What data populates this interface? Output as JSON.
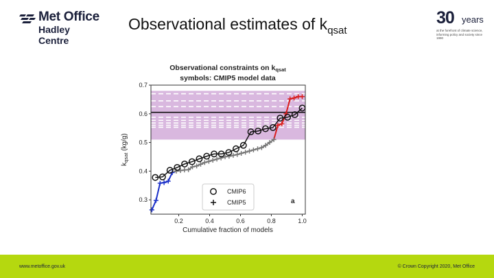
{
  "header": {
    "logo_line1": "Met Office",
    "logo_line2": "Hadley Centre",
    "title_main": "Observational estimates of k",
    "title_sub": "qsat",
    "years_number": "30",
    "years_word": "years",
    "years_tagline": "at the forefront of climate science, informing policy and society since 1990"
  },
  "footer": {
    "left_text": "www.metoffice.gov.uk",
    "right_text": "© Crown Copyright 2020, Met Office",
    "bar_color": "#b5d80f"
  },
  "chart_data": {
    "type": "line",
    "title_line1": "Observational constraints on k",
    "title_line1_sub": "qsat",
    "title_line2": "symbols: CMIP5 model data",
    "xlabel": "Cumulative fraction of models",
    "ylabel_main": "k",
    "ylabel_sub": "qsat",
    "ylabel_unit": " (kg/g)",
    "xlim": [
      0.02,
      1.02
    ],
    "ylim": [
      0.25,
      0.7
    ],
    "xticks": [
      "0.2",
      "0.4",
      "0.6",
      "0.8",
      "1.0"
    ],
    "xtick_values": [
      0.2,
      0.4,
      0.6,
      0.8,
      1.0
    ],
    "yticks": [
      "0.3",
      "0.4",
      "0.5",
      "0.6",
      "0.7"
    ],
    "ytick_values": [
      0.3,
      0.4,
      0.5,
      0.6,
      0.7
    ],
    "shaded_range": [
      0.51,
      0.68
    ],
    "shade_color": "#d9b8df",
    "obs_mean": 0.605,
    "obs_dashed": [
      0.67,
      0.645,
      0.625,
      0.588,
      0.577,
      0.568,
      0.56,
      0.553
    ],
    "panel_label": "a",
    "legend": [
      {
        "name": "CMIP6",
        "marker": "circle"
      },
      {
        "name": "CMIP5",
        "marker": "plus"
      }
    ],
    "series": [
      {
        "name": "CMIP6",
        "color": "#111111",
        "marker": "circle",
        "x": [
          0.048,
          0.095,
          0.143,
          0.19,
          0.238,
          0.286,
          0.333,
          0.381,
          0.429,
          0.476,
          0.524,
          0.571,
          0.619,
          0.667,
          0.714,
          0.762,
          0.81,
          0.857,
          0.905,
          0.952,
          1.0
        ],
        "y": [
          0.378,
          0.38,
          0.403,
          0.413,
          0.425,
          0.433,
          0.443,
          0.452,
          0.46,
          0.46,
          0.465,
          0.478,
          0.49,
          0.537,
          0.54,
          0.548,
          0.552,
          0.585,
          0.588,
          0.597,
          0.62
        ]
      },
      {
        "name": "CMIP5",
        "color": "#777777",
        "marker": "plus",
        "x": [
          0.026,
          0.053,
          0.079,
          0.105,
          0.132,
          0.158,
          0.184,
          0.211,
          0.237,
          0.263,
          0.289,
          0.316,
          0.342,
          0.368,
          0.395,
          0.421,
          0.447,
          0.474,
          0.5,
          0.526,
          0.553,
          0.579,
          0.605,
          0.632,
          0.658,
          0.684,
          0.711,
          0.737,
          0.763,
          0.789,
          0.816,
          0.842,
          0.868,
          0.895,
          0.921,
          0.947,
          0.974,
          1.0
        ],
        "y": [
          0.265,
          0.298,
          0.358,
          0.36,
          0.365,
          0.395,
          0.4,
          0.402,
          0.404,
          0.405,
          0.415,
          0.418,
          0.424,
          0.43,
          0.434,
          0.438,
          0.442,
          0.446,
          0.45,
          0.452,
          0.455,
          0.458,
          0.462,
          0.466,
          0.47,
          0.474,
          0.478,
          0.482,
          0.49,
          0.5,
          0.51,
          0.56,
          0.565,
          0.6,
          0.652,
          0.655,
          0.66,
          0.66
        ]
      }
    ]
  }
}
